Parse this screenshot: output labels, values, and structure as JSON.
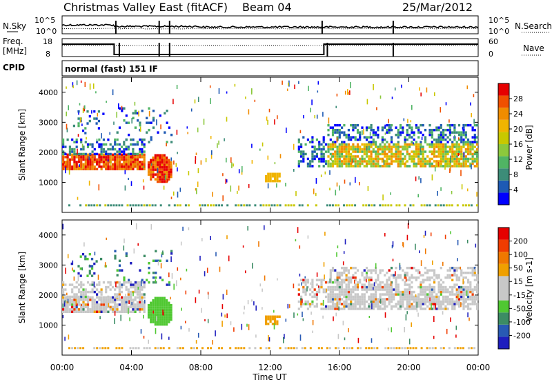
{
  "header": {
    "title": "Christmas Valley East (fitACF)",
    "beam": "Beam 04",
    "date": "25/Mar/2012"
  },
  "param_panels": {
    "sky": {
      "left_label": "N.Sky",
      "right_label": "N.Search",
      "left_ticks": [
        "10^5",
        "10^0"
      ],
      "right_ticks": [
        "10^5",
        "10^0"
      ]
    },
    "freq": {
      "left_label_1": "Freq.",
      "left_label_2": "[MHz]",
      "right_label": "Nave",
      "left_ticks": [
        "18",
        "8"
      ],
      "right_ticks": [
        "60",
        "0"
      ]
    },
    "cpid": {
      "label": "CPID",
      "text": "normal (fast) 151 IF"
    }
  },
  "colors": {
    "power": [
      "#0000ff",
      "#1e5ab4",
      "#3c8c78",
      "#50b464",
      "#8cc83c",
      "#c8c800",
      "#f0b400",
      "#f08c00",
      "#f05000",
      "#e60000"
    ],
    "velocity": [
      "#1e1ebe",
      "#285ab4",
      "#3c8c64",
      "#50c832",
      "#c8c8c8",
      "#c8c8c8",
      "#f0a000",
      "#f07800",
      "#f03c00",
      "#e60000"
    ]
  },
  "chart_data": [
    {
      "type": "heatmap",
      "name": "power",
      "ylabel": "Slant Range [km]",
      "y_ticks": [
        1000,
        2000,
        3000,
        4000
      ],
      "ylim": [
        0,
        4500
      ],
      "xlim": [
        0,
        24
      ],
      "x_ticks": [
        0,
        4,
        8,
        12,
        16,
        20,
        24
      ],
      "colorbar": {
        "label": "Power [dB]",
        "ticks": [
          "28",
          "24",
          "20",
          "16",
          "12",
          "8",
          "4"
        ]
      }
    },
    {
      "type": "heatmap",
      "name": "velocity",
      "ylabel": "Slant Range [km]",
      "y_ticks": [
        1000,
        2000,
        3000,
        4000
      ],
      "ylim": [
        0,
        4500
      ],
      "xlim": [
        0,
        24
      ],
      "x_ticks": [
        0,
        4,
        8,
        12,
        16,
        20,
        24
      ],
      "x_tick_labels": [
        "00:00",
        "04:00",
        "08:00",
        "12:00",
        "16:00",
        "20:00",
        "00:00"
      ],
      "xlabel": "Time UT",
      "colorbar": {
        "label": "Velocity [m s-1]",
        "ticks": [
          "200",
          "100",
          "50",
          "15",
          "-15",
          "-50",
          "-100",
          "-200"
        ]
      }
    }
  ]
}
